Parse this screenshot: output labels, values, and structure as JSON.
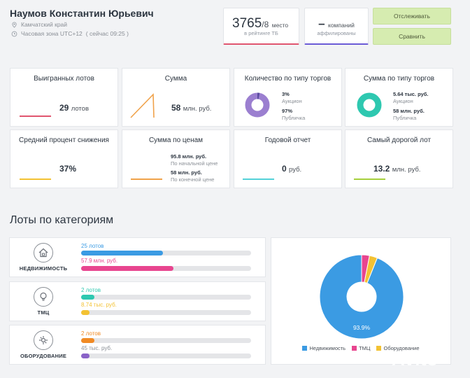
{
  "person": {
    "name": "Наумов Константин Юрьевич",
    "region": "Камчатский край",
    "timezone": "Часовая зона UTC+12",
    "local_time": "( сейчас 09:25 )"
  },
  "rating": {
    "value": "3765",
    "total": "/8",
    "place_label": "место",
    "sub": "в рейтинге ТБ",
    "accent": "#e0556f"
  },
  "affiliates": {
    "value": "–",
    "label": "компаний",
    "sub": "аффилированы",
    "accent": "#6b5bd6"
  },
  "actions": {
    "track_label": "Отслеживать",
    "compare_label": "Сравнить"
  },
  "cards": {
    "won_lots": {
      "title": "Выигранных лотов",
      "value": "29",
      "unit": "лотов",
      "color": "#e0556f"
    },
    "sum": {
      "title": "Сумма",
      "value": "58",
      "unit": "млн. руб.",
      "color": "#f0a24a"
    },
    "count_by_type": {
      "title": "Количество по типу торгов",
      "a_value": "3%",
      "a_label": "Аукцион",
      "b_value": "97%",
      "b_label": "Публичка",
      "color": "#9b7fd0",
      "share": 0.03
    },
    "sum_by_type": {
      "title": "Сумма по типу торгов",
      "a_value": "5.64 тыс. руб.",
      "a_label": "Аукцион",
      "b_value": "58 млн. руб.",
      "b_label": "Публичка",
      "color": "#2ec8b0",
      "share": 0.0001
    },
    "avg_reduction": {
      "title": "Средний процент снижения",
      "value": "37%",
      "color": "#f3c233"
    },
    "sum_by_price": {
      "title": "Сумма по ценам",
      "a_value": "95.8 млн. руб.",
      "a_label": "По начальной цене",
      "b_value": "58 млн. руб.",
      "b_label": "По конечной цене",
      "color": "#f0a24a"
    },
    "annual_report": {
      "title": "Годовой отчет",
      "value": "0",
      "unit": "руб.",
      "color": "#53d1d8"
    },
    "most_expensive": {
      "title": "Самый дорогой лот",
      "value": "13.2",
      "unit": "млн. руб.",
      "color": "#a6cf3c"
    }
  },
  "categories_section": {
    "title": "Лоты по категориям",
    "items": [
      {
        "label": "НЕДВИЖИМОСТЬ",
        "icon": "house-icon",
        "count_text": "25 лотов",
        "count_fraction": 0.48,
        "count_color": "#3b9be3",
        "sum_text": "57.9 млн. руб.",
        "sum_fraction": 0.545,
        "sum_color": "#e8458f"
      },
      {
        "label": "ТМЦ",
        "icon": "lightbulb-icon",
        "count_text": "2 лотов",
        "count_fraction": 0.08,
        "count_color": "#2ec8b0",
        "sum_text": "8.74 тыс. руб.",
        "sum_fraction": 0.05,
        "sum_color": "#f3c233"
      },
      {
        "label": "ОБОРУДОВАНИЕ",
        "icon": "equipment-icon",
        "count_text": "2 лотов",
        "count_fraction": 0.08,
        "count_color": "#f08a24",
        "sum_text": "45 тыс. руб.",
        "sum_fraction": 0.05,
        "sum_color": "#8a63c8"
      }
    ]
  },
  "pie": {
    "label": "93.9%",
    "slices": [
      {
        "name": "Недвижимость",
        "value": 93.9,
        "color": "#3b9be3"
      },
      {
        "name": "ТМЦ",
        "value": 3.05,
        "color": "#e8458f"
      },
      {
        "name": "Оборудование",
        "value": 3.05,
        "color": "#f3c233"
      }
    ]
  },
  "watermark": {
    "text": "Avito"
  }
}
